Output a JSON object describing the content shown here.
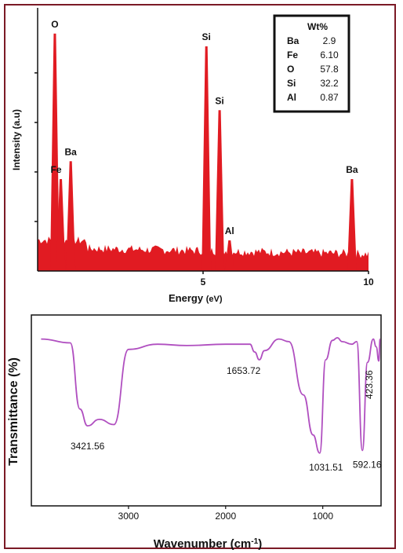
{
  "colors": {
    "frame": "#7b1a26",
    "eds_fill": "#e11b22",
    "ftir_line": "#b04fc0",
    "axis": "#111111"
  },
  "chart_data": [
    {
      "type": "area",
      "xlabel": "Energy",
      "xlabel_unit": "(eV)",
      "ylabel": "Intensity (a.u)",
      "xlim": [
        0,
        10
      ],
      "xticks": [
        "5",
        "10"
      ],
      "peaks": [
        {
          "label": "O",
          "x": 0.52,
          "height": 0.93
        },
        {
          "label": "Fe",
          "x": 0.7,
          "height": 0.36
        },
        {
          "label": "Ba",
          "x": 1.0,
          "height": 0.43
        },
        {
          "label": "Si",
          "x": 5.1,
          "height": 0.88
        },
        {
          "label": "Si",
          "x": 5.5,
          "height": 0.63
        },
        {
          "label": "Al",
          "x": 5.8,
          "height": 0.12
        },
        {
          "label": "Ba",
          "x": 9.5,
          "height": 0.36
        }
      ],
      "inset_table": {
        "header": "Wt%",
        "rows": [
          {
            "element": "Ba",
            "value": "2.9"
          },
          {
            "element": "Fe",
            "value": "6.10"
          },
          {
            "element": "O",
            "value": "57.8"
          },
          {
            "element": "Si",
            "value": "32.2"
          },
          {
            "element": "Al",
            "value": "0.87"
          }
        ]
      }
    },
    {
      "type": "line",
      "xlabel": "Wavenumber (cm",
      "xlabel_sup": "-1",
      "xlabel_close": ")",
      "ylabel": "Transmittance (%)",
      "xlim": [
        4000,
        400
      ],
      "xticks": [
        "3000",
        "2000",
        "1000"
      ],
      "x": [
        3900,
        3600,
        3500,
        3421.56,
        3300,
        3150,
        3000,
        2700,
        2400,
        2000,
        1750,
        1700,
        1653.72,
        1600,
        1450,
        1350,
        1200,
        1100,
        1031.51,
        970,
        900,
        850,
        800,
        700,
        650,
        592.16,
        540,
        480,
        450,
        423.36,
        410
      ],
      "y": [
        96,
        93,
        42,
        29,
        34,
        30,
        88,
        92,
        91,
        92,
        92,
        86,
        80,
        87,
        96,
        94,
        53,
        22,
        8,
        80,
        95,
        97,
        94,
        92,
        94,
        10,
        78,
        96,
        90,
        79,
        96
      ],
      "annotations": [
        {
          "text": "3421.56",
          "x": 3421.56
        },
        {
          "text": "1653.72",
          "x": 1653.72
        },
        {
          "text": "1031.51",
          "x": 1031.51
        },
        {
          "text": "592.16",
          "x": 592.16
        },
        {
          "text": "423.36",
          "x": 423.36
        }
      ]
    }
  ]
}
